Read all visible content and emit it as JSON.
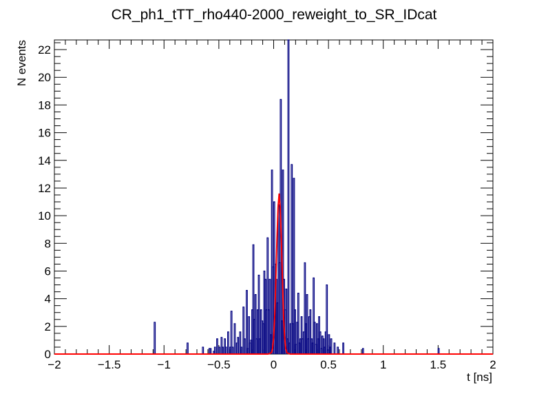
{
  "chart_data": {
    "type": "histogram",
    "title": "CR_ph1_tTT_rho440-2000_reweight_to_SR_IDcat",
    "xlabel": "t [ns]",
    "ylabel": "N events",
    "xlim": [
      -2,
      2
    ],
    "ylim": [
      0,
      22.7
    ],
    "grid": false,
    "legend": "none",
    "x_ticks": [
      -2,
      -1.5,
      -1,
      -0.5,
      0,
      0.5,
      1,
      1.5,
      2
    ],
    "x_tick_labels": [
      "−2",
      "−1.5",
      "−1",
      "−0.5",
      "0",
      "0.5",
      "1",
      "1.5",
      "2"
    ],
    "y_ticks": [
      0,
      2,
      4,
      6,
      8,
      10,
      12,
      14,
      16,
      18,
      20,
      22
    ],
    "y_tick_labels": [
      "0",
      "2",
      "4",
      "6",
      "8",
      "10",
      "12",
      "14",
      "16",
      "18",
      "20",
      "22"
    ],
    "bin_width": 0.01,
    "colors": {
      "histogram": "#000080",
      "fit": "#ff0000"
    },
    "series": [
      {
        "style": "histogram",
        "bins": [
          [
            -1.09,
            2.3
          ],
          [
            -0.79,
            0.8
          ],
          [
            -0.65,
            0.5
          ],
          [
            -0.59,
            0.4
          ],
          [
            -0.58,
            0.4
          ],
          [
            -0.55,
            0.2
          ],
          [
            -0.54,
            0.5
          ],
          [
            -0.52,
            1.1
          ],
          [
            -0.5,
            0.5
          ],
          [
            -0.48,
            1.2
          ],
          [
            -0.47,
            0.5
          ],
          [
            -0.45,
            1.1
          ],
          [
            -0.44,
            0.5
          ],
          [
            -0.42,
            1.6
          ],
          [
            -0.4,
            0.5
          ],
          [
            -0.39,
            3.1
          ],
          [
            -0.38,
            0.5
          ],
          [
            -0.36,
            2.2
          ],
          [
            -0.34,
            0.8
          ],
          [
            -0.33,
            1.2
          ],
          [
            -0.31,
            1.6
          ],
          [
            -0.3,
            0.5
          ],
          [
            -0.28,
            3.4
          ],
          [
            -0.27,
            1.1
          ],
          [
            -0.25,
            4.6
          ],
          [
            -0.24,
            0.4
          ],
          [
            -0.23,
            2.7
          ],
          [
            -0.22,
            0.8
          ],
          [
            -0.21,
            1.0
          ],
          [
            -0.2,
            3.2
          ],
          [
            -0.19,
            7.9
          ],
          [
            -0.18,
            2.5
          ],
          [
            -0.17,
            4.3
          ],
          [
            -0.16,
            1.1
          ],
          [
            -0.15,
            3.2
          ],
          [
            -0.14,
            5.7
          ],
          [
            -0.13,
            1.1
          ],
          [
            -0.12,
            3.2
          ],
          [
            -0.11,
            2.4
          ],
          [
            -0.1,
            2.2
          ],
          [
            -0.09,
            6.0
          ],
          [
            -0.08,
            5.4
          ],
          [
            -0.07,
            3.2
          ],
          [
            -0.06,
            8.4
          ],
          [
            -0.05,
            3.2
          ],
          [
            -0.04,
            5.4
          ],
          [
            -0.03,
            1.4
          ],
          [
            -0.02,
            13.3
          ],
          [
            -0.01,
            6.3
          ],
          [
            0.0,
            11.0
          ],
          [
            0.01,
            6.5
          ],
          [
            0.02,
            5.4
          ],
          [
            0.03,
            3.7
          ],
          [
            0.04,
            10.8
          ],
          [
            0.05,
            6.6
          ],
          [
            0.06,
            18.4
          ],
          [
            0.07,
            2.4
          ],
          [
            0.08,
            13.3
          ],
          [
            0.09,
            5.4
          ],
          [
            0.1,
            3.2
          ],
          [
            0.11,
            4.7
          ],
          [
            0.12,
            1.1
          ],
          [
            0.13,
            22.7
          ],
          [
            0.14,
            0.8
          ],
          [
            0.15,
            2.2
          ],
          [
            0.16,
            13.7
          ],
          [
            0.17,
            2.2
          ],
          [
            0.18,
            12.7
          ],
          [
            0.19,
            3.2
          ],
          [
            0.2,
            0.7
          ],
          [
            0.21,
            2.3
          ],
          [
            0.22,
            4.4
          ],
          [
            0.23,
            0.8
          ],
          [
            0.24,
            1.1
          ],
          [
            0.25,
            2.7
          ],
          [
            0.26,
            1.1
          ],
          [
            0.27,
            1.6
          ],
          [
            0.28,
            6.6
          ],
          [
            0.29,
            2.2
          ],
          [
            0.3,
            4.3
          ],
          [
            0.31,
            1.1
          ],
          [
            0.32,
            2.7
          ],
          [
            0.33,
            3.2
          ],
          [
            0.34,
            1.1
          ],
          [
            0.35,
            0.8
          ],
          [
            0.36,
            5.5
          ],
          [
            0.37,
            2.3
          ],
          [
            0.38,
            0.7
          ],
          [
            0.39,
            2.2
          ],
          [
            0.4,
            1.1
          ],
          [
            0.41,
            2.7
          ],
          [
            0.42,
            1.6
          ],
          [
            0.43,
            0.4
          ],
          [
            0.44,
            1.3
          ],
          [
            0.45,
            1.1
          ],
          [
            0.46,
            0.5
          ],
          [
            0.47,
            1.6
          ],
          [
            0.48,
            5.0
          ],
          [
            0.49,
            0.3
          ],
          [
            0.5,
            1.4
          ],
          [
            0.51,
            0.5
          ],
          [
            0.52,
            1.1
          ],
          [
            0.55,
            0.8
          ],
          [
            0.58,
            0.5
          ],
          [
            0.63,
            0.8
          ],
          [
            0.81,
            0.4
          ],
          [
            1.5,
            0.4
          ]
        ]
      },
      {
        "style": "fit-curve",
        "points": [
          [
            -2.0,
            0.0
          ],
          [
            -0.05,
            0.0
          ],
          [
            -0.02,
            0.1
          ],
          [
            -0.01,
            0.4
          ],
          [
            0.0,
            1.2
          ],
          [
            0.01,
            2.8
          ],
          [
            0.02,
            5.4
          ],
          [
            0.03,
            8.3
          ],
          [
            0.04,
            10.6
          ],
          [
            0.05,
            11.6
          ],
          [
            0.06,
            10.6
          ],
          [
            0.07,
            8.3
          ],
          [
            0.08,
            5.4
          ],
          [
            0.09,
            2.8
          ],
          [
            0.1,
            1.2
          ],
          [
            0.11,
            0.4
          ],
          [
            0.12,
            0.1
          ],
          [
            0.15,
            0.0
          ],
          [
            2.0,
            0.0
          ]
        ]
      }
    ]
  }
}
